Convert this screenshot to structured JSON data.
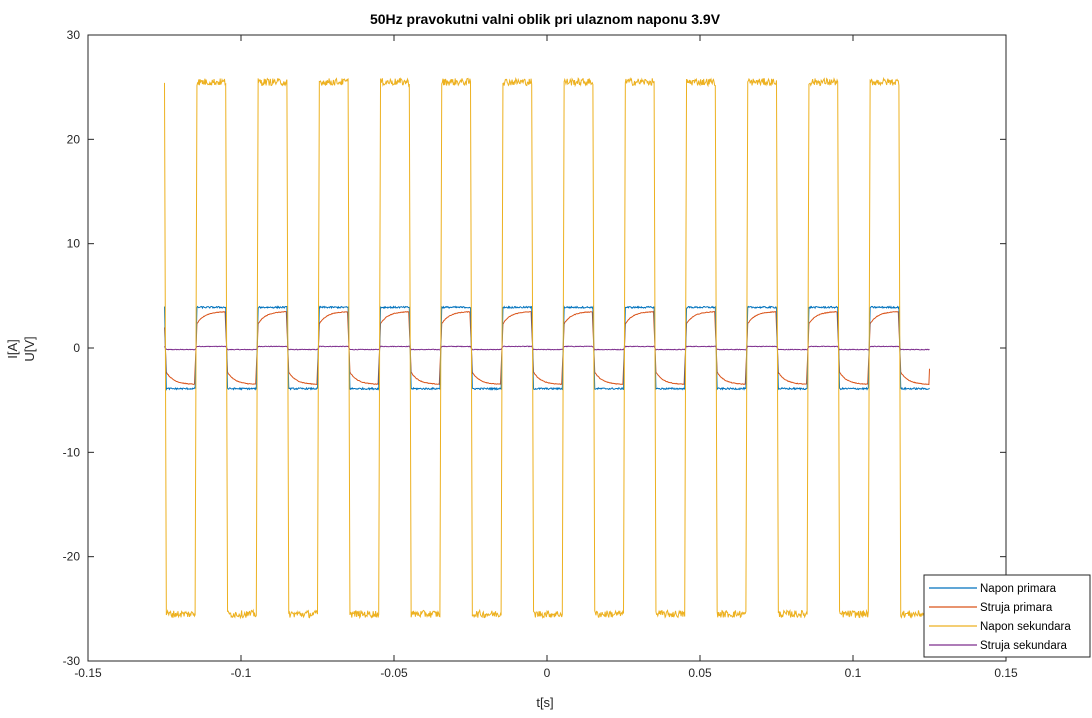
{
  "chart_data": {
    "type": "line",
    "title": "50Hz pravokutni valni oblik pri ulaznom naponu 3.9V",
    "xlabel": "t[s]",
    "ylabel_lines": [
      "I[A]",
      "U[V]"
    ],
    "xlim": [
      -0.15,
      0.15
    ],
    "ylim": [
      -30,
      30
    ],
    "xticks": [
      -0.15,
      -0.1,
      -0.05,
      0,
      0.05,
      0.1,
      0.15
    ],
    "xtick_labels": [
      "-0.15",
      "-0.1",
      "-0.05",
      "0",
      "0.05",
      "0.1",
      "0.15"
    ],
    "yticks": [
      -30,
      -20,
      -10,
      0,
      10,
      20,
      30
    ],
    "ytick_labels": [
      "-30",
      "-20",
      "-10",
      "0",
      "10",
      "20",
      "30"
    ],
    "grid": false,
    "legend_position": "bottom-right",
    "period_s": 0.02,
    "t_start": -0.125,
    "t_end": 0.125,
    "first_half_cycle_sign": -1,
    "series": [
      {
        "name": "Napon primara",
        "color": "#0072BD",
        "waveform": "square",
        "amplitude": 3.9
      },
      {
        "name": "Struja primara",
        "color": "#D95319",
        "waveform": "exponential-settling-square",
        "start_level": 2.0,
        "end_level": 3.5
      },
      {
        "name": "Napon sekundara",
        "color": "#EDB120",
        "waveform": "square",
        "amplitude": 25.5
      },
      {
        "name": "Struja sekundara",
        "color": "#7E2F8E",
        "waveform": "square",
        "amplitude": 0.15
      }
    ]
  }
}
